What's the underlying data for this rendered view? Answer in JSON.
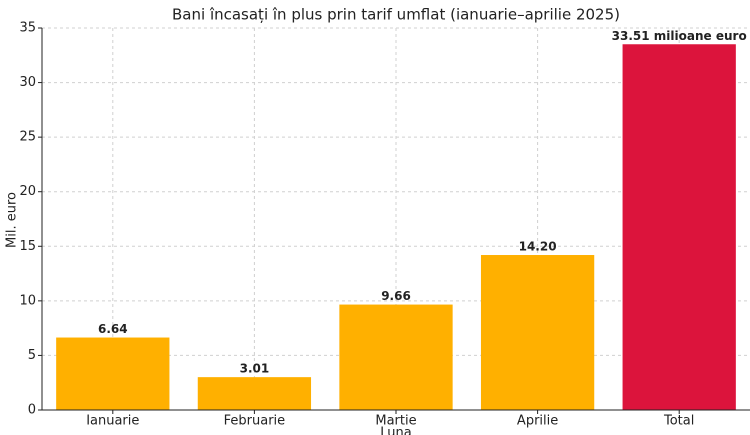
{
  "chart_data": {
    "type": "bar",
    "title": "Bani încasați în plus prin tarif umflat (ianuarie–aprilie 2025)",
    "x_label": "Luna",
    "y_label": "Mil. euro",
    "categories": [
      "Ianuarie",
      "Februarie",
      "Martie",
      "Aprilie",
      "Total"
    ],
    "values": [
      6.64,
      3.01,
      9.66,
      14.2,
      33.51
    ],
    "value_labels": [
      "6.64",
      "3.01",
      "9.66",
      "14.20",
      "33.51 milioane euro"
    ],
    "colors": [
      "#ffb000",
      "#ffb000",
      "#ffb000",
      "#ffb000",
      "#dc143c"
    ],
    "ylim": [
      0,
      35
    ],
    "yticks": [
      0,
      5,
      10,
      15,
      20,
      25,
      30,
      35
    ],
    "grid": true
  }
}
